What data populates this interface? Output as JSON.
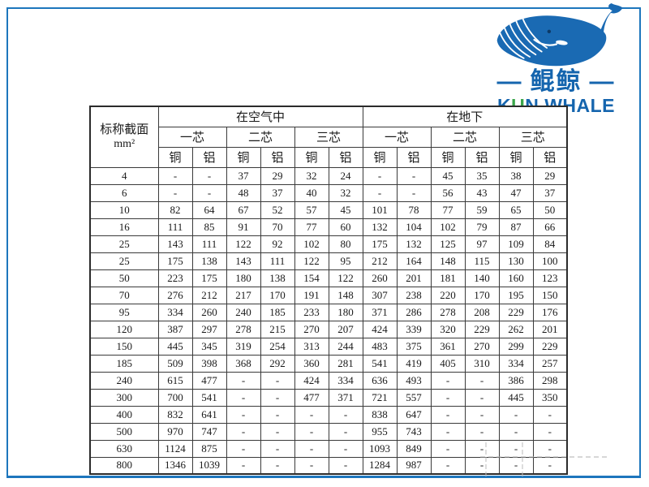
{
  "logo": {
    "brand_cn": "鲲鲸",
    "dash": "—",
    "brand_en": {
      "pre": "K",
      "accent": "U",
      "post": "N WHALE"
    },
    "colors": {
      "blue": "#1565ae",
      "green": "#3aa64a",
      "whale_blue": "#1a6ab3",
      "frame_blue": "#1d76bd"
    }
  },
  "table": {
    "corner": {
      "title": "标称截面",
      "unit": "mm²"
    },
    "groups": [
      "在空气中",
      "在地下"
    ],
    "cores": [
      "一芯",
      "二芯",
      "三芯",
      "一芯",
      "二芯",
      "三芯"
    ],
    "materials": [
      "铜",
      "铝"
    ],
    "rows": [
      {
        "size": "4",
        "values": [
          "-",
          "-",
          "37",
          "29",
          "32",
          "24",
          "-",
          "-",
          "45",
          "35",
          "38",
          "29"
        ]
      },
      {
        "size": "6",
        "values": [
          "-",
          "-",
          "48",
          "37",
          "40",
          "32",
          "-",
          "-",
          "56",
          "43",
          "47",
          "37"
        ]
      },
      {
        "size": "10",
        "values": [
          "82",
          "64",
          "67",
          "52",
          "57",
          "45",
          "101",
          "78",
          "77",
          "59",
          "65",
          "50"
        ]
      },
      {
        "size": "16",
        "values": [
          "111",
          "85",
          "91",
          "70",
          "77",
          "60",
          "132",
          "104",
          "102",
          "79",
          "87",
          "66"
        ]
      },
      {
        "size": "25",
        "values": [
          "143",
          "111",
          "122",
          "92",
          "102",
          "80",
          "175",
          "132",
          "125",
          "97",
          "109",
          "84"
        ]
      },
      {
        "size": "25",
        "values": [
          "175",
          "138",
          "143",
          "111",
          "122",
          "95",
          "212",
          "164",
          "148",
          "115",
          "130",
          "100"
        ]
      },
      {
        "size": "50",
        "values": [
          "223",
          "175",
          "180",
          "138",
          "154",
          "122",
          "260",
          "201",
          "181",
          "140",
          "160",
          "123"
        ]
      },
      {
        "size": "70",
        "values": [
          "276",
          "212",
          "217",
          "170",
          "191",
          "148",
          "307",
          "238",
          "220",
          "170",
          "195",
          "150"
        ]
      },
      {
        "size": "95",
        "values": [
          "334",
          "260",
          "240",
          "185",
          "233",
          "180",
          "371",
          "286",
          "278",
          "208",
          "229",
          "176"
        ]
      },
      {
        "size": "120",
        "values": [
          "387",
          "297",
          "278",
          "215",
          "270",
          "207",
          "424",
          "339",
          "320",
          "229",
          "262",
          "201"
        ]
      },
      {
        "size": "150",
        "values": [
          "445",
          "345",
          "319",
          "254",
          "313",
          "244",
          "483",
          "375",
          "361",
          "270",
          "299",
          "229"
        ]
      },
      {
        "size": "185",
        "values": [
          "509",
          "398",
          "368",
          "292",
          "360",
          "281",
          "541",
          "419",
          "405",
          "310",
          "334",
          "257"
        ]
      },
      {
        "size": "240",
        "values": [
          "615",
          "477",
          "-",
          "-",
          "424",
          "334",
          "636",
          "493",
          "-",
          "-",
          "386",
          "298"
        ]
      },
      {
        "size": "300",
        "values": [
          "700",
          "541",
          "-",
          "-",
          "477",
          "371",
          "721",
          "557",
          "-",
          "-",
          "445",
          "350"
        ]
      },
      {
        "size": "400",
        "values": [
          "832",
          "641",
          "-",
          "-",
          "-",
          "-",
          "838",
          "647",
          "-",
          "-",
          "-",
          "-"
        ]
      },
      {
        "size": "500",
        "values": [
          "970",
          "747",
          "-",
          "-",
          "-",
          "-",
          "955",
          "743",
          "-",
          "-",
          "-",
          "-"
        ]
      },
      {
        "size": "630",
        "values": [
          "1124",
          "875",
          "-",
          "-",
          "-",
          "-",
          "1093",
          "849",
          "-",
          "-",
          "-",
          "-"
        ]
      },
      {
        "size": "800",
        "values": [
          "1346",
          "1039",
          "-",
          "-",
          "-",
          "-",
          "1284",
          "987",
          "-",
          "-",
          "-",
          "-"
        ]
      }
    ]
  }
}
